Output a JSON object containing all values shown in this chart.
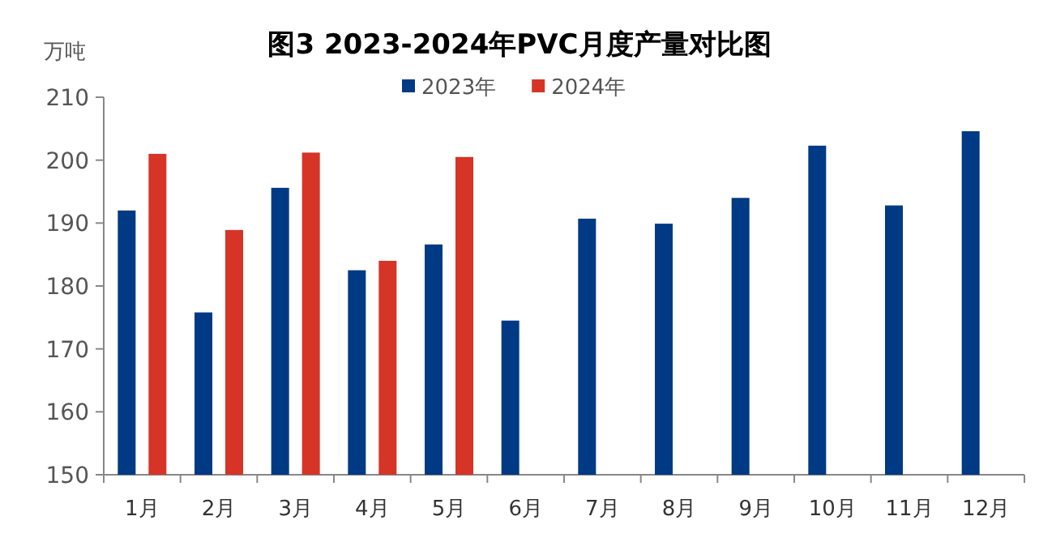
{
  "chart_data": {
    "type": "bar",
    "title": "图3 2023-2024年PVC月度产量对比图",
    "ylabel": "万吨",
    "categories": [
      "1月",
      "2月",
      "3月",
      "4月",
      "5月",
      "6月",
      "7月",
      "8月",
      "9月",
      "10月",
      "11月",
      "12月"
    ],
    "series": [
      {
        "name": "2023年",
        "color": "#003a84",
        "values": [
          192.0,
          175.8,
          195.6,
          182.5,
          186.6,
          174.5,
          190.7,
          189.9,
          194.0,
          202.3,
          192.8,
          204.6
        ]
      },
      {
        "name": "2024年",
        "color": "#d63427",
        "values": [
          201.0,
          188.9,
          201.2,
          184.0,
          200.5,
          null,
          null,
          null,
          null,
          null,
          null,
          null
        ]
      }
    ],
    "ylim": [
      150,
      210
    ],
    "yticks": [
      150,
      160,
      170,
      180,
      190,
      200,
      210
    ],
    "legend": "top"
  }
}
